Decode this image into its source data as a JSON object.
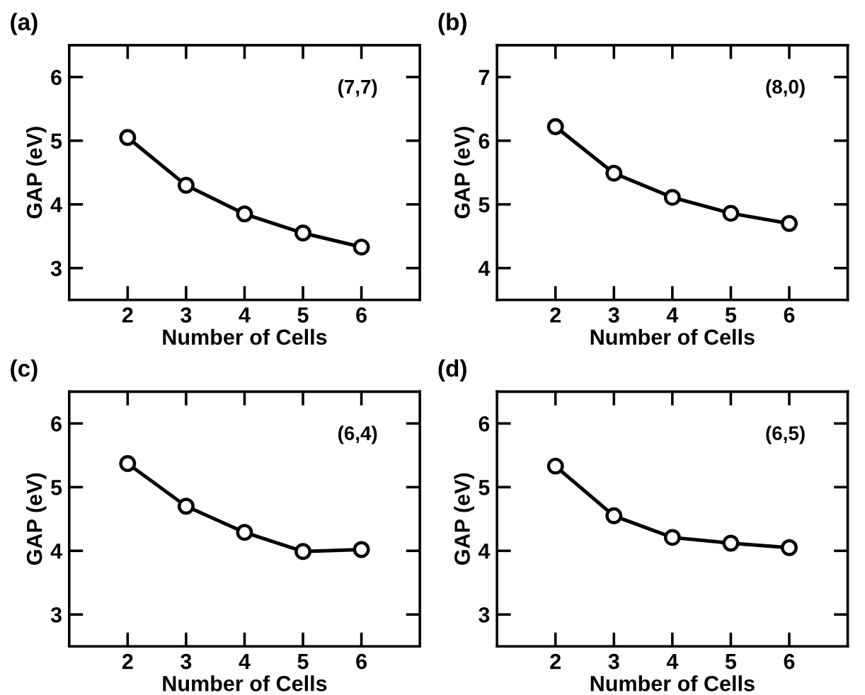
{
  "chart_data": [
    {
      "type": "line",
      "title": "(a)",
      "xlabel": "Number of Cells",
      "ylabel": "GAP (eV)",
      "annotations": [
        "(7,7)"
      ],
      "x": [
        2,
        3,
        4,
        5,
        6
      ],
      "series": [
        {
          "color": "#000000",
          "values": [
            5.05,
            4.3,
            3.85,
            3.55,
            3.33
          ]
        }
      ],
      "xlim": [
        1,
        7
      ],
      "ylim": [
        2.5,
        6.5
      ],
      "xticks": [
        2,
        3,
        4,
        5,
        6
      ],
      "yticks": [
        3,
        4,
        5,
        6
      ],
      "marker": "circle",
      "line_style": "solid",
      "grid": false,
      "legend": false
    },
    {
      "type": "line",
      "title": "(b)",
      "xlabel": "Number of Cells",
      "ylabel": "GAP (eV)",
      "annotations": [
        "(8,0)"
      ],
      "x": [
        2,
        3,
        4,
        5,
        6
      ],
      "series": [
        {
          "color": "#000000",
          "values": [
            6.22,
            5.49,
            5.11,
            4.86,
            4.7
          ]
        }
      ],
      "xlim": [
        1,
        7
      ],
      "ylim": [
        3.5,
        7.5
      ],
      "xticks": [
        2,
        3,
        4,
        5,
        6
      ],
      "yticks": [
        4,
        5,
        6,
        7
      ],
      "marker": "circle",
      "line_style": "solid",
      "grid": false,
      "legend": false
    },
    {
      "type": "line",
      "title": "(c)",
      "xlabel": "Number of Cells",
      "ylabel": "GAP (eV)",
      "annotations": [
        "(6,4)"
      ],
      "x": [
        2,
        3,
        4,
        5,
        6
      ],
      "series": [
        {
          "color": "#000000",
          "values": [
            5.37,
            4.7,
            4.29,
            3.99,
            4.02
          ]
        }
      ],
      "xlim": [
        1,
        7
      ],
      "ylim": [
        2.5,
        6.5
      ],
      "xticks": [
        2,
        3,
        4,
        5,
        6
      ],
      "yticks": [
        3,
        4,
        5,
        6
      ],
      "marker": "circle",
      "line_style": "solid",
      "grid": false,
      "legend": false
    },
    {
      "type": "line",
      "title": "(d)",
      "xlabel": "Number of Cells",
      "ylabel": "GAP (eV)",
      "annotations": [
        "(6,5)"
      ],
      "x": [
        2,
        3,
        4,
        5,
        6
      ],
      "series": [
        {
          "color": "#000000",
          "values": [
            5.33,
            4.55,
            4.21,
            4.12,
            4.05
          ]
        }
      ],
      "xlim": [
        1,
        7
      ],
      "ylim": [
        2.5,
        6.5
      ],
      "xticks": [
        2,
        3,
        4,
        5,
        6
      ],
      "yticks": [
        3,
        4,
        5,
        6
      ],
      "marker": "circle",
      "line_style": "solid",
      "grid": false,
      "legend": false
    }
  ]
}
